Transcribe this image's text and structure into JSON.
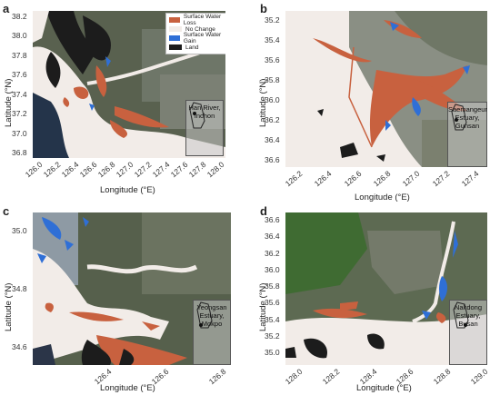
{
  "colors": {
    "loss": "#c8613f",
    "no_change": "#f2ece8",
    "gain": "#2f6fd6",
    "land": "#1c1c1c",
    "satellite_dark": "#4a5545",
    "satellite_mid": "#7d8679",
    "sea_dark": "#24344a"
  },
  "legend": {
    "items": [
      {
        "label": "Surface Water Loss",
        "color": "#c8613f"
      },
      {
        "label": "No Change",
        "color": "#f2ece8"
      },
      {
        "label": "Surface Water Gain",
        "color": "#2f6fd6"
      },
      {
        "label": "Land",
        "color": "#1c1c1c"
      }
    ]
  },
  "panels": [
    {
      "label": "a",
      "inset_line1": "Han River,",
      "inset_line2": "Inchon",
      "ylabel": "Latitude (°N)",
      "xlabel": "Longitude (°E)",
      "yticks": [
        "38.2",
        "38.0",
        "37.8",
        "37.6",
        "37.4",
        "37.2",
        "37.0",
        "36.8"
      ],
      "xticks": [
        "126.0",
        "126.2",
        "126.4",
        "126.6",
        "126.8",
        "127.0",
        "127.2",
        "127.4",
        "127.6",
        "127.8",
        "128.0"
      ]
    },
    {
      "label": "b",
      "inset_line1": "Saemangeum",
      "inset_line2": "Estuary,",
      "inset_line3": "Gunsan",
      "ylabel": "Latitude (°N)",
      "xlabel": "Longitude (°E)",
      "yticks": [
        "35.2",
        "35.4",
        "35.6",
        "35.8",
        "36.0",
        "36.2",
        "36.4",
        "36.6"
      ],
      "xticks": [
        "126.2",
        "126.4",
        "126.6",
        "126.8",
        "127.0",
        "127.2",
        "127.4"
      ]
    },
    {
      "label": "c",
      "inset_line1": "Yeongsan",
      "inset_line2": "Estuary,",
      "inset_line3": "Mokpo",
      "ylabel": "Latitude (°N)",
      "xlabel": "Longitude (°E)",
      "yticks": [
        "35.0",
        "34.8",
        "34.6"
      ],
      "xticks": [
        "126.4",
        "126.6",
        "126.8"
      ]
    },
    {
      "label": "d",
      "inset_line1": "Nakdong",
      "inset_line2": "Estuary,",
      "inset_line3": "Busan",
      "ylabel": "Latitude (°N)",
      "xlabel": "Longitude (°E)",
      "yticks": [
        "36.6",
        "36.4",
        "36.2",
        "36.0",
        "35.8",
        "35.6",
        "35.4",
        "35.2",
        "35.0"
      ],
      "xticks": [
        "128.0",
        "128.2",
        "128.4",
        "128.6",
        "128.8",
        "129.0"
      ]
    }
  ]
}
